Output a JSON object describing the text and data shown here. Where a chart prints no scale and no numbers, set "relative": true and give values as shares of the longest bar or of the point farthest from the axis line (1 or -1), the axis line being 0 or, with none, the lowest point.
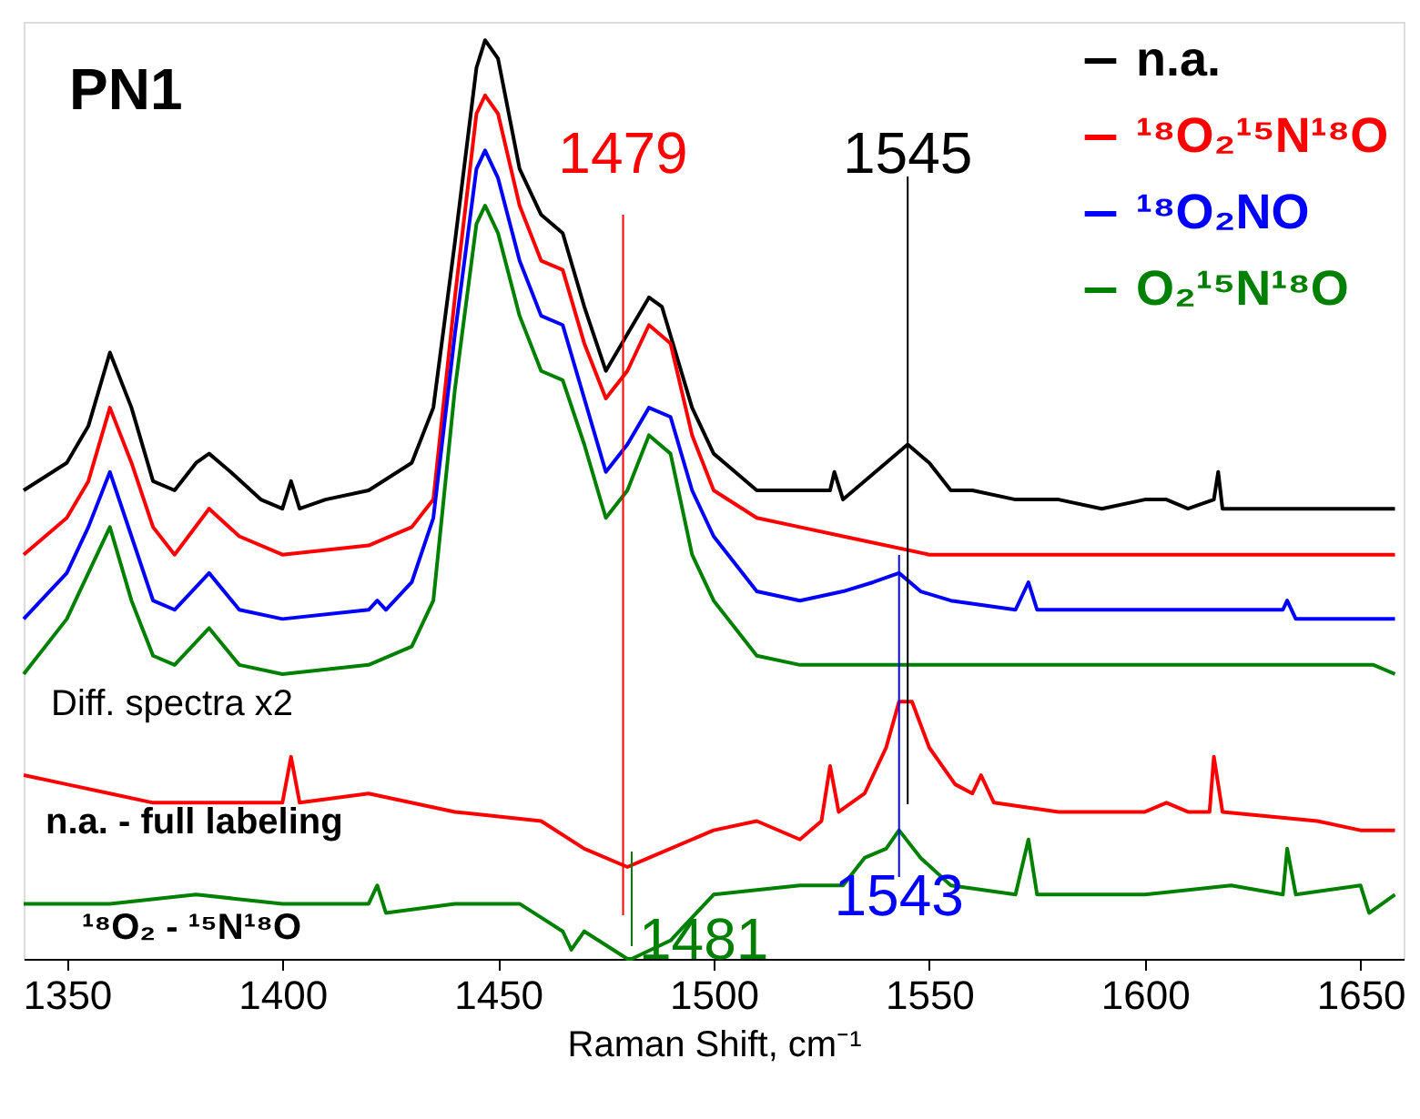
{
  "chart_data": {
    "type": "line",
    "title": "PN1",
    "xlabel": "Raman Shift, cm⁻¹",
    "relative": true,
    "legend": "top right",
    "grid": false,
    "xlim": [
      1340,
      1660
    ],
    "xticks": [
      1350,
      1400,
      1450,
      1500,
      1550,
      1600,
      1650
    ],
    "series": [
      {
        "name": "n.a.",
        "color": "#000000",
        "x": [
          1340,
          1350,
          1355,
          1360,
          1365,
          1370,
          1375,
          1380,
          1383,
          1388,
          1395,
          1400,
          1402,
          1404,
          1410,
          1420,
          1430,
          1435,
          1440,
          1445,
          1447,
          1450,
          1455,
          1460,
          1465,
          1470,
          1475,
          1480,
          1485,
          1488,
          1495,
          1500,
          1510,
          1520,
          1527,
          1528,
          1530,
          1540,
          1545,
          1550,
          1555,
          1560,
          1570,
          1580,
          1590,
          1600,
          1605,
          1610,
          1616,
          1617,
          1618,
          1630,
          1640,
          1650,
          1658
        ],
        "values": [
          0.51,
          0.54,
          0.58,
          0.66,
          0.6,
          0.52,
          0.51,
          0.54,
          0.55,
          0.53,
          0.5,
          0.49,
          0.52,
          0.49,
          0.5,
          0.51,
          0.54,
          0.6,
          0.78,
          0.97,
          1.0,
          0.98,
          0.86,
          0.81,
          0.79,
          0.71,
          0.64,
          0.68,
          0.72,
          0.71,
          0.6,
          0.55,
          0.51,
          0.51,
          0.51,
          0.53,
          0.5,
          0.54,
          0.56,
          0.54,
          0.51,
          0.51,
          0.5,
          0.5,
          0.49,
          0.5,
          0.5,
          0.49,
          0.5,
          0.53,
          0.49,
          0.49,
          0.49,
          0.49,
          0.49
        ]
      },
      {
        "name": "¹⁸O₂¹⁵N¹⁸O",
        "color": "#ff0000",
        "x": [
          1340,
          1350,
          1355,
          1360,
          1365,
          1370,
          1375,
          1383,
          1390,
          1400,
          1420,
          1430,
          1435,
          1440,
          1445,
          1447,
          1450,
          1455,
          1460,
          1465,
          1470,
          1475,
          1480,
          1485,
          1490,
          1495,
          1500,
          1510,
          1520,
          1530,
          1550,
          1600,
          1658
        ],
        "values": [
          0.44,
          0.48,
          0.52,
          0.6,
          0.54,
          0.47,
          0.44,
          0.49,
          0.46,
          0.44,
          0.45,
          0.47,
          0.5,
          0.72,
          0.92,
          0.94,
          0.92,
          0.82,
          0.76,
          0.75,
          0.67,
          0.61,
          0.64,
          0.69,
          0.67,
          0.57,
          0.51,
          0.48,
          0.47,
          0.46,
          0.44,
          0.44,
          0.44
        ]
      },
      {
        "name": "¹⁸O₂NO",
        "color": "#0000ff",
        "x": [
          1340,
          1350,
          1355,
          1360,
          1365,
          1370,
          1375,
          1383,
          1390,
          1400,
          1420,
          1422,
          1424,
          1430,
          1435,
          1440,
          1445,
          1447,
          1450,
          1455,
          1460,
          1465,
          1470,
          1475,
          1480,
          1485,
          1490,
          1495,
          1500,
          1510,
          1520,
          1530,
          1537,
          1543,
          1548,
          1555,
          1570,
          1573,
          1575,
          1600,
          1632,
          1633,
          1635,
          1650,
          1658
        ],
        "values": [
          0.37,
          0.42,
          0.47,
          0.53,
          0.46,
          0.39,
          0.38,
          0.42,
          0.38,
          0.37,
          0.38,
          0.39,
          0.38,
          0.41,
          0.48,
          0.68,
          0.86,
          0.88,
          0.85,
          0.76,
          0.7,
          0.69,
          0.61,
          0.53,
          0.56,
          0.6,
          0.59,
          0.51,
          0.46,
          0.4,
          0.39,
          0.4,
          0.41,
          0.42,
          0.4,
          0.39,
          0.38,
          0.41,
          0.38,
          0.38,
          0.38,
          0.39,
          0.37,
          0.37,
          0.37
        ]
      },
      {
        "name": "O₂¹⁵N¹⁸O",
        "color": "#008000",
        "x": [
          1340,
          1350,
          1355,
          1360,
          1365,
          1370,
          1375,
          1383,
          1390,
          1400,
          1420,
          1430,
          1435,
          1440,
          1445,
          1447,
          1450,
          1455,
          1460,
          1465,
          1470,
          1475,
          1480,
          1485,
          1490,
          1495,
          1500,
          1510,
          1520,
          1540,
          1560,
          1600,
          1652,
          1653,
          1658
        ],
        "values": [
          0.31,
          0.37,
          0.42,
          0.47,
          0.39,
          0.33,
          0.32,
          0.36,
          0.32,
          0.31,
          0.32,
          0.34,
          0.39,
          0.62,
          0.8,
          0.82,
          0.79,
          0.7,
          0.64,
          0.63,
          0.56,
          0.48,
          0.51,
          0.57,
          0.55,
          0.44,
          0.39,
          0.33,
          0.32,
          0.32,
          0.32,
          0.32,
          0.32,
          0.32,
          0.31
        ]
      },
      {
        "color": "#ff0000",
        "x": [
          1340,
          1350,
          1360,
          1370,
          1380,
          1390,
          1400,
          1402,
          1404,
          1420,
          1440,
          1460,
          1470,
          1480,
          1485,
          1500,
          1510,
          1520,
          1525,
          1527,
          1529,
          1535,
          1540,
          1543,
          1546,
          1550,
          1556,
          1560,
          1562,
          1565,
          1580,
          1600,
          1605,
          1610,
          1615,
          1616,
          1618,
          1640,
          1650,
          1658
        ],
        "values": [
          0.2,
          0.19,
          0.18,
          0.17,
          0.17,
          0.17,
          0.17,
          0.22,
          0.17,
          0.18,
          0.16,
          0.15,
          0.12,
          0.1,
          0.11,
          0.14,
          0.15,
          0.13,
          0.15,
          0.21,
          0.16,
          0.18,
          0.23,
          0.28,
          0.28,
          0.23,
          0.19,
          0.18,
          0.2,
          0.17,
          0.16,
          0.16,
          0.17,
          0.16,
          0.16,
          0.22,
          0.16,
          0.15,
          0.14,
          0.14
        ]
      },
      {
        "color": "#008000",
        "x": [
          1340,
          1350,
          1360,
          1380,
          1400,
          1420,
          1422,
          1424,
          1440,
          1455,
          1465,
          1467,
          1470,
          1480,
          1481,
          1490,
          1500,
          1520,
          1530,
          1535,
          1540,
          1543,
          1548,
          1555,
          1570,
          1573,
          1575,
          1600,
          1620,
          1632,
          1633,
          1635,
          1650,
          1652,
          1658
        ],
        "values": [
          0.06,
          0.06,
          0.06,
          0.07,
          0.06,
          0.06,
          0.08,
          0.05,
          0.06,
          0.06,
          0.03,
          0.01,
          0.03,
          0.0,
          0.0,
          0.02,
          0.07,
          0.08,
          0.08,
          0.11,
          0.12,
          0.14,
          0.11,
          0.08,
          0.07,
          0.13,
          0.07,
          0.07,
          0.08,
          0.07,
          0.12,
          0.07,
          0.08,
          0.05,
          0.07
        ]
      }
    ],
    "ref_lines": [
      {
        "axis": "x",
        "value": 1479,
        "label": "1479",
        "color": "#ff0000"
      },
      {
        "axis": "x",
        "value": 1545,
        "label": "1545",
        "color": "#000000"
      },
      {
        "axis": "x",
        "value": 1481,
        "label": "1481",
        "color": "#008000"
      },
      {
        "axis": "x",
        "value": 1543,
        "label": "1543",
        "color": "#0000ff"
      }
    ],
    "annotations": [
      "Diff. spectra x2",
      "n.a. - full labeling",
      "¹⁸O₂ - ¹⁵N¹⁸O"
    ]
  }
}
